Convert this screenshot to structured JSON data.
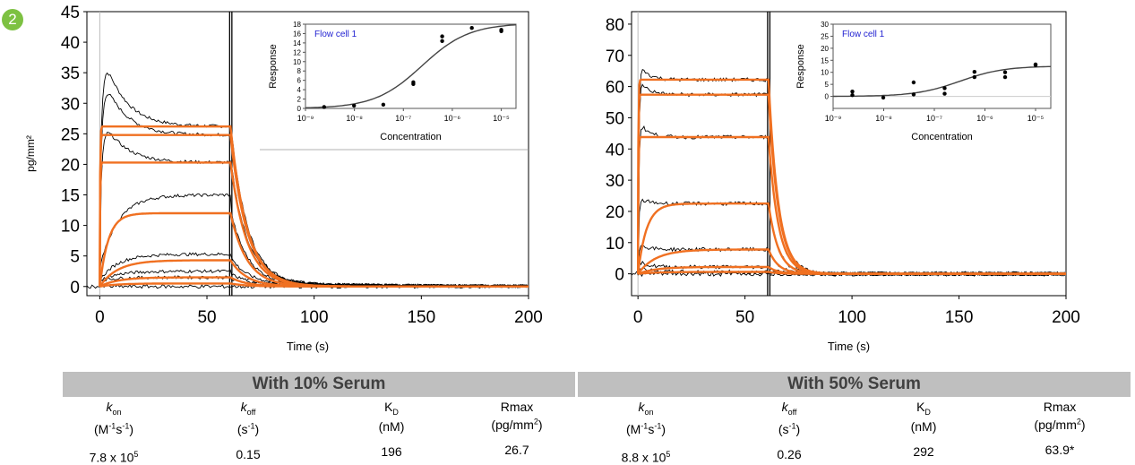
{
  "figure": {
    "badge": "2",
    "colors": {
      "fit": "#f07021",
      "data": "#000000",
      "header_bg": "#bfbfbf",
      "badge": "#7dc142",
      "inset_title": "#1f1fd1"
    }
  },
  "chart_data": [
    {
      "type": "line",
      "panel": "With 10% Serum",
      "xlabel": "Time (s)",
      "ylabel": "pg/mm²",
      "xlim": [
        -6,
        200
      ],
      "ylim": [
        -1.5,
        45
      ],
      "xticks": [
        0,
        50,
        100,
        150,
        200
      ],
      "yticks": [
        0,
        5,
        10,
        15,
        20,
        25,
        30,
        35,
        40,
        45
      ],
      "injection_stop_s": 61,
      "fit_series": [
        {
          "plateau": 26.2
        },
        {
          "plateau": 24.8
        },
        {
          "plateau": 20.3
        },
        {
          "plateau": 12.0
        },
        {
          "plateau": 4.3
        },
        {
          "plateau": 1.5
        },
        {
          "plateau": 0.5
        }
      ],
      "inset": {
        "type": "scatter",
        "title": "Flow cell 1",
        "xlabel": "Concentration",
        "ylabel": "Response",
        "xscale": "log",
        "xlim": [
          1e-09,
          2e-05
        ],
        "ylim": [
          0,
          18
        ],
        "xtick_labels": [
          "10⁻⁹",
          "10⁻⁸",
          "10⁻⁷",
          "10⁻⁶",
          "10⁻⁵"
        ],
        "ytick_labels": [
          "0",
          "2",
          "4",
          "6",
          "8",
          "10",
          "12",
          "14",
          "16",
          "18"
        ],
        "points": [
          [
            2.4e-09,
            0.3
          ],
          [
            9.8e-09,
            0.6
          ],
          [
            3.9e-08,
            0.8
          ],
          [
            1.6e-07,
            5.2
          ],
          [
            1.6e-07,
            5.6
          ],
          [
            6.2e-07,
            14.4
          ],
          [
            6.2e-07,
            15.4
          ],
          [
            2.5e-06,
            17.2
          ],
          [
            1e-05,
            16.5
          ],
          [
            1e-05,
            16.8
          ]
        ]
      }
    },
    {
      "type": "line",
      "panel": "With 50% Serum",
      "xlabel": "Time (s)",
      "xlim": [
        -3,
        200
      ],
      "ylim": [
        -7,
        84
      ],
      "xticks": [
        0,
        50,
        100,
        150,
        200
      ],
      "yticks": [
        0,
        10,
        20,
        30,
        40,
        50,
        60,
        70,
        80
      ],
      "injection_stop_s": 61,
      "fit_series": [
        {
          "plateau": 62.2
        },
        {
          "plateau": 57.4
        },
        {
          "plateau": 43.8
        },
        {
          "plateau": 22.5
        },
        {
          "plateau": 7.8
        },
        {
          "plateau": 2.2
        },
        {
          "plateau": 0.6
        }
      ],
      "inset": {
        "type": "scatter",
        "title": "Flow cell 1",
        "xlabel": "Concentration",
        "ylabel": "Response",
        "xscale": "log",
        "xlim": [
          1e-09,
          2e-05
        ],
        "ylim": [
          -5,
          30
        ],
        "xtick_labels": [
          "10⁻⁹",
          "10⁻⁸",
          "10⁻⁷",
          "10⁻⁶",
          "10⁻⁵"
        ],
        "ytick_labels": [
          "0",
          "5",
          "10",
          "15",
          "20",
          "25",
          "30"
        ],
        "points": [
          [
            2.4e-09,
            0.5
          ],
          [
            2.4e-09,
            2.0
          ],
          [
            9.8e-09,
            -0.5
          ],
          [
            3.9e-08,
            5.8
          ],
          [
            3.9e-08,
            0.8
          ],
          [
            1.6e-07,
            3.4
          ],
          [
            1.6e-07,
            1.1
          ],
          [
            6.2e-07,
            10.2
          ],
          [
            6.2e-07,
            8.0
          ],
          [
            2.5e-06,
            10.0
          ],
          [
            2.5e-06,
            8.0
          ],
          [
            1e-05,
            13.0
          ],
          [
            1e-05,
            13.3
          ]
        ]
      }
    }
  ],
  "table": {
    "left": {
      "header": "With 10% Serum",
      "cols": [
        {
          "sym": "k",
          "sub": "on",
          "unit_html": "(M<sup>-1</sup>s<sup>-1</sup>)",
          "value_html": "7.8 x 10<sup>5</sup>",
          "italic": true
        },
        {
          "sym": "k",
          "sub": "off",
          "unit_html": "(s<sup>-1</sup>)",
          "value_html": "0.15",
          "italic": true
        },
        {
          "sym": "K",
          "sub": "D",
          "unit_html": "(nM)",
          "value_html": "196",
          "italic": false
        },
        {
          "sym": "Rmax",
          "sub": "",
          "unit_html": "(pg/mm<sup>2</sup>)",
          "value_html": "26.7",
          "italic": false
        }
      ]
    },
    "right": {
      "header": "With 50% Serum",
      "cols": [
        {
          "sym": "k",
          "sub": "on",
          "unit_html": "(M<sup>-1</sup>s<sup>-1</sup>)",
          "value_html": "8.8 x 10<sup>5</sup>",
          "italic": true
        },
        {
          "sym": "k",
          "sub": "off",
          "unit_html": "(s<sup>-1</sup>)",
          "value_html": "0.26",
          "italic": true
        },
        {
          "sym": "K",
          "sub": "D",
          "unit_html": "(nM)",
          "value_html": "292",
          "italic": false
        },
        {
          "sym": "Rmax",
          "sub": "",
          "unit_html": "(pg/mm<sup>2</sup>)",
          "value_html": "63.9*",
          "italic": false
        }
      ]
    }
  }
}
